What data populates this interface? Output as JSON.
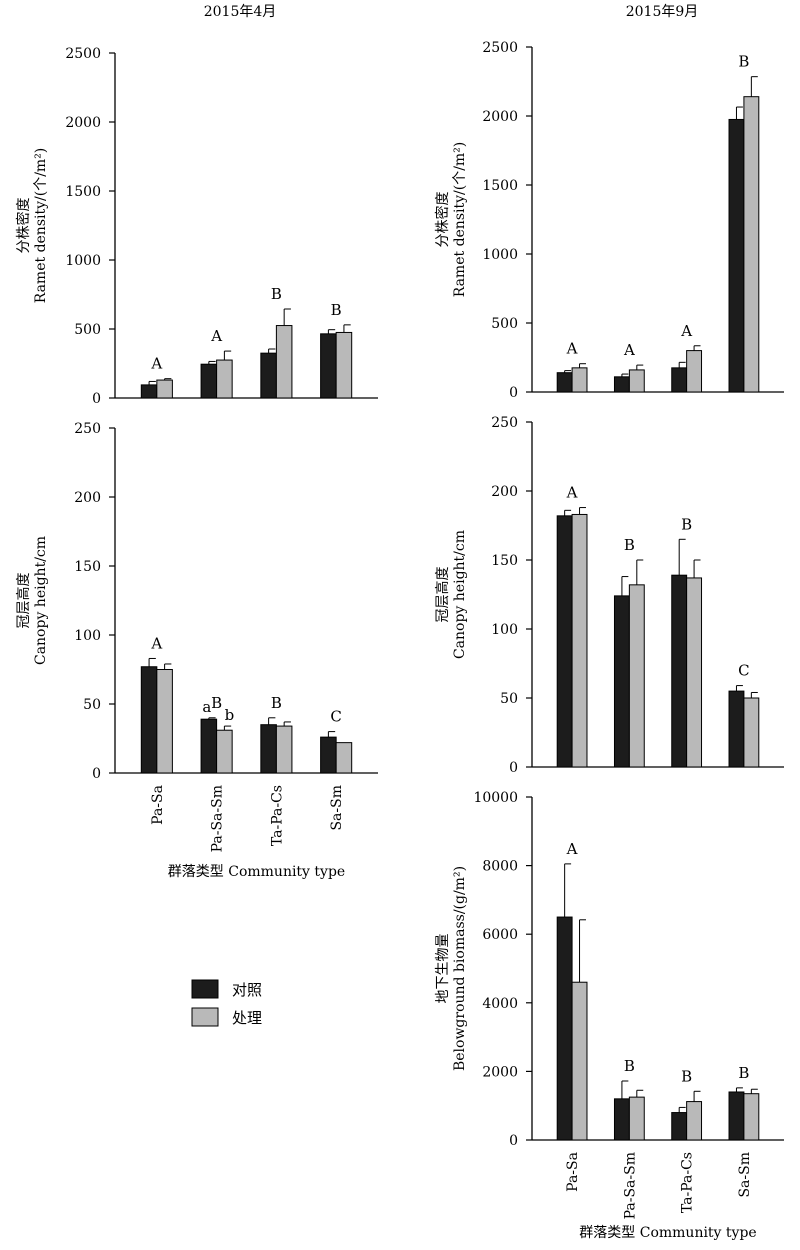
{
  "column_titles": [
    "2015年4月",
    "2015年9月"
  ],
  "legend": {
    "items": [
      {
        "label": "对照",
        "color": "#1c1c1c"
      },
      {
        "label": "处理",
        "color": "#b9b9b9"
      }
    ]
  },
  "chart_data": [
    {
      "type": "bar",
      "panel": "april-ramet-density",
      "title": "",
      "ylabel_cn": "分株密度",
      "ylabel_en": "Ramet density/(个/m²)",
      "xlabel": "",
      "ylim": [
        0,
        2500
      ],
      "yticks": [
        0,
        500,
        1000,
        1500,
        2000,
        2500
      ],
      "ytick_labels": [
        "0",
        "500",
        "1000",
        "1500",
        "2000",
        "2500"
      ],
      "categories": [
        "Pa-Sa",
        "Pa-Sa-Sm",
        "Ta-Pa-Cs",
        "Sa-Sm"
      ],
      "show_category_labels": false,
      "series": [
        {
          "name": "对照",
          "values": [
            95,
            245,
            325,
            465
          ],
          "errors": [
            25,
            20,
            30,
            30
          ]
        },
        {
          "name": "处理",
          "values": [
            130,
            275,
            525,
            475
          ],
          "errors": [
            10,
            65,
            120,
            55
          ]
        }
      ],
      "group_letters": [
        "A",
        "A",
        "B",
        "B"
      ],
      "series_letters": [],
      "legend_position": "none"
    },
    {
      "type": "bar",
      "panel": "april-canopy-height",
      "title": "",
      "ylabel_cn": "冠层高度",
      "ylabel_en": "Canopy height/cm",
      "xlabel": "群落类型 Community type",
      "ylim": [
        0,
        250
      ],
      "yticks": [
        0,
        50,
        100,
        150,
        200,
        250
      ],
      "ytick_labels": [
        "0",
        "50",
        "100",
        "150",
        "200",
        "250"
      ],
      "categories": [
        "Pa-Sa",
        "Pa-Sa-Sm",
        "Ta-Pa-Cs",
        "Sa-Sm"
      ],
      "show_category_labels": true,
      "series": [
        {
          "name": "对照",
          "values": [
            77,
            39,
            35,
            26
          ],
          "errors": [
            6,
            1,
            5,
            4
          ]
        },
        {
          "name": "处理",
          "values": [
            75,
            31,
            34,
            22
          ],
          "errors": [
            4,
            3,
            3,
            0
          ]
        }
      ],
      "group_letters": [
        "A",
        "B",
        "B",
        "C"
      ],
      "series_letters": [
        {
          "category": "Pa-Sa-Sm",
          "series": "对照",
          "text": "a"
        },
        {
          "category": "Pa-Sa-Sm",
          "series": "处理",
          "text": "b"
        }
      ],
      "legend_position": "below"
    },
    {
      "type": "bar",
      "panel": "september-ramet-density",
      "title": "",
      "ylabel_cn": "分株密度",
      "ylabel_en": "Ramet density/(个/m²)",
      "xlabel": "",
      "ylim": [
        0,
        2500
      ],
      "yticks": [
        0,
        500,
        1000,
        1500,
        2000,
        2500
      ],
      "ytick_labels": [
        "0",
        "500",
        "1000",
        "1500",
        "2000",
        "2500"
      ],
      "categories": [
        "Pa-Sa",
        "Pa-Sa-Sm",
        "Ta-Pa-Cs",
        "Sa-Sm"
      ],
      "show_category_labels": false,
      "series": [
        {
          "name": "对照",
          "values": [
            140,
            110,
            175,
            1975
          ],
          "errors": [
            15,
            20,
            40,
            90
          ]
        },
        {
          "name": "处理",
          "values": [
            175,
            160,
            300,
            2140
          ],
          "errors": [
            30,
            35,
            35,
            145
          ]
        }
      ],
      "group_letters": [
        "A",
        "A",
        "A",
        "B"
      ],
      "series_letters": [],
      "legend_position": "none"
    },
    {
      "type": "bar",
      "panel": "september-canopy-height",
      "title": "",
      "ylabel_cn": "冠层高度",
      "ylabel_en": "Canopy height/cm",
      "xlabel": "",
      "ylim": [
        0,
        250
      ],
      "yticks": [
        0,
        50,
        100,
        150,
        200,
        250
      ],
      "ytick_labels": [
        "0",
        "50",
        "100",
        "150",
        "200",
        "250"
      ],
      "categories": [
        "Pa-Sa",
        "Pa-Sa-Sm",
        "Ta-Pa-Cs",
        "Sa-Sm"
      ],
      "show_category_labels": false,
      "series": [
        {
          "name": "对照",
          "values": [
            182,
            124,
            139,
            55
          ],
          "errors": [
            4,
            14,
            26,
            4
          ]
        },
        {
          "name": "处理",
          "values": [
            183,
            132,
            137,
            50
          ],
          "errors": [
            5,
            18,
            13,
            4
          ]
        }
      ],
      "group_letters": [
        "A",
        "B",
        "B",
        "C"
      ],
      "series_letters": [],
      "legend_position": "none"
    },
    {
      "type": "bar",
      "panel": "september-belowground-biomass",
      "title": "",
      "ylabel_cn": "地下生物量",
      "ylabel_en": "Belowground biomass/(g/m²)",
      "xlabel": "群落类型 Community type",
      "ylim": [
        0,
        10000
      ],
      "yticks": [
        0,
        2000,
        4000,
        6000,
        8000,
        10000
      ],
      "ytick_labels": [
        "0",
        "2000",
        "4000",
        "6000",
        "8000",
        "10000"
      ],
      "categories": [
        "Pa-Sa",
        "Pa-Sa-Sm",
        "Ta-Pa-Cs",
        "Sa-Sm"
      ],
      "show_category_labels": true,
      "series": [
        {
          "name": "对照",
          "values": [
            6500,
            1200,
            800,
            1400
          ],
          "errors": [
            1550,
            520,
            150,
            120
          ]
        },
        {
          "name": "处理",
          "values": [
            4600,
            1250,
            1120,
            1350
          ],
          "errors": [
            1820,
            200,
            300,
            130
          ]
        }
      ],
      "group_letters": [
        "A",
        "B",
        "B",
        "B"
      ],
      "series_letters": [],
      "legend_position": "none"
    }
  ]
}
